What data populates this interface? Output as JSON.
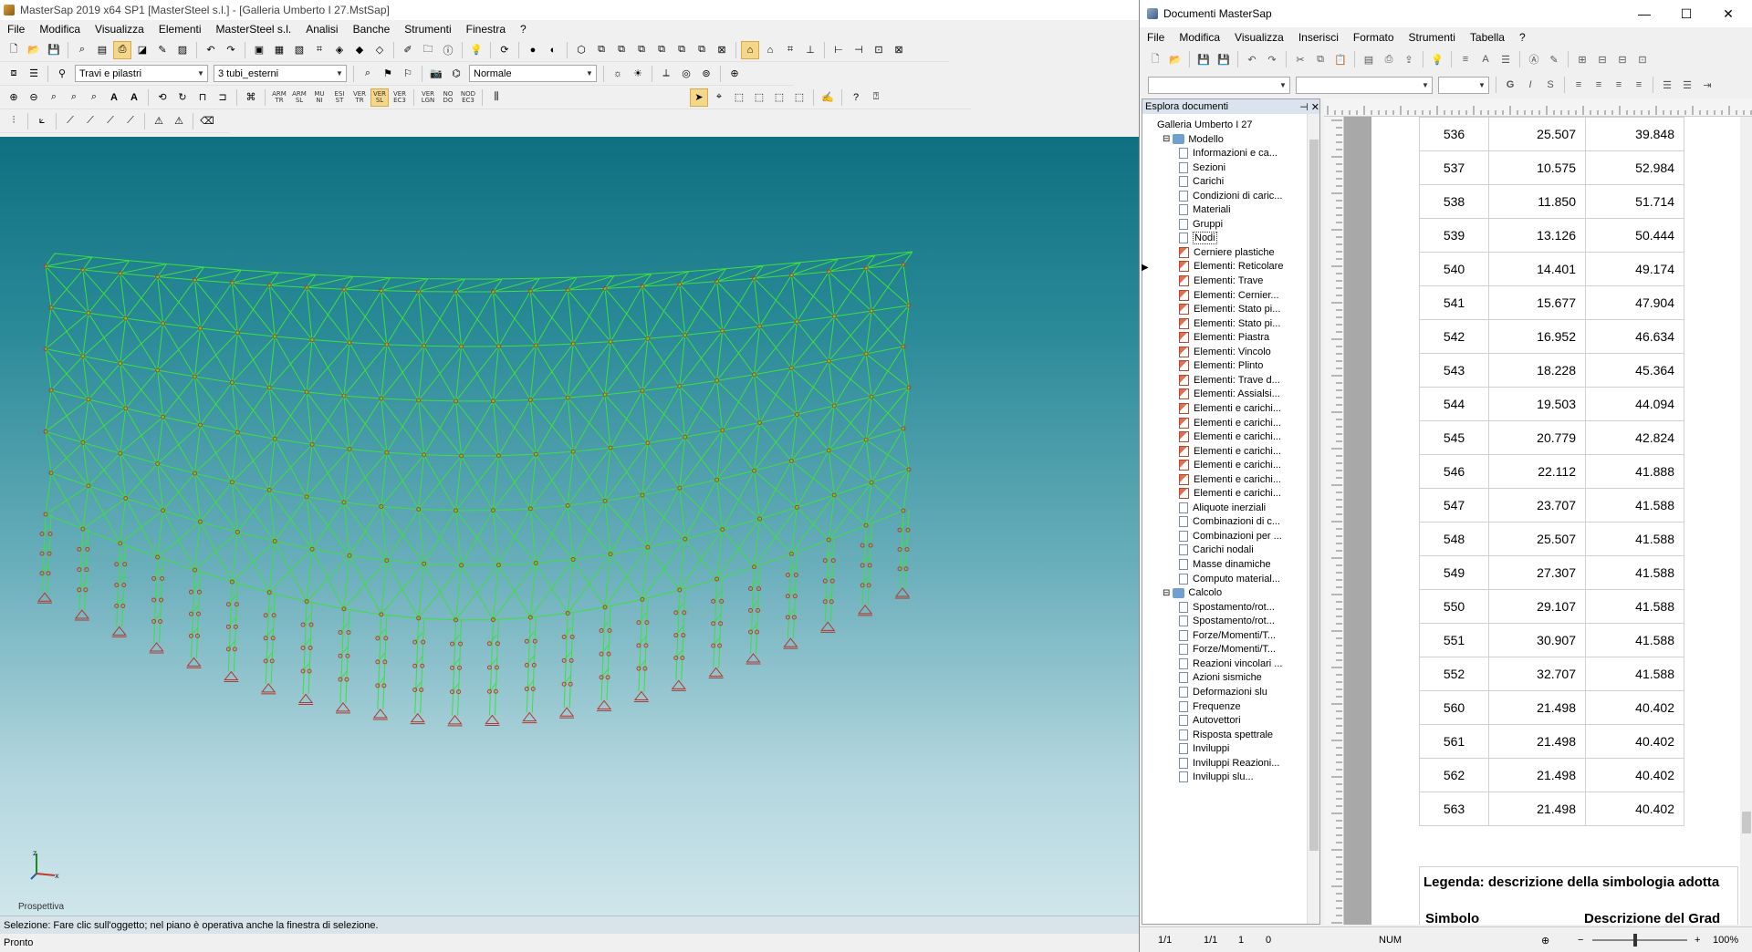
{
  "main": {
    "title": "MasterSap 2019 x64 SP1 [MasterSteel s.l.] - [Galleria Umberto I 27.MstSap]",
    "menu": [
      "File",
      "Modifica",
      "Visualizza",
      "Elementi",
      "MasterSteel s.l.",
      "Analisi",
      "Banche",
      "Strumenti",
      "Finestra",
      "?"
    ],
    "combo_element_type": "Travi e pilastri",
    "combo_group": "3 tubi_esterni",
    "combo_view_mode": "Normale",
    "toolbar3_labels": [
      "ARM TR",
      "ARM SL",
      "MU NI",
      "ESI ST",
      "VER TR",
      "VER SL",
      "VER EC3",
      "VER LGN",
      "NO DO",
      "NOD EC3"
    ],
    "view_label": "Prospettiva",
    "status_hint": "Selezione: Fare clic sull'oggetto; nel piano è operativa anche la finestra di selezione.",
    "status_ready": "Pronto",
    "colors": {
      "frame": "#3de03d",
      "node": "#c0392b",
      "support": "#b03a2e"
    }
  },
  "doc": {
    "title": "Documenti MasterSap",
    "menu": [
      "File",
      "Modifica",
      "Visualizza",
      "Inserisci",
      "Formato",
      "Strumenti",
      "Tabella",
      "?"
    ],
    "explorer_title": "Esplora documenti",
    "tree_root": "Galleria Umberto I 27",
    "tree": [
      {
        "label": "Modello",
        "type": "folder",
        "level": 1
      },
      {
        "label": "Informazioni e ca...",
        "type": "doc",
        "level": 2
      },
      {
        "label": "Sezioni",
        "type": "doc",
        "level": 2
      },
      {
        "label": "Carichi",
        "type": "doc",
        "level": 2
      },
      {
        "label": "Condizioni di caric...",
        "type": "doc",
        "level": 2
      },
      {
        "label": "Materiali",
        "type": "doc",
        "level": 2
      },
      {
        "label": "Gruppi",
        "type": "doc",
        "level": 2
      },
      {
        "label": "Nodi",
        "type": "doc",
        "level": 2,
        "selected": true
      },
      {
        "label": "Cerniere plastiche",
        "type": "red",
        "level": 2
      },
      {
        "label": "Elementi: Reticolare",
        "type": "red",
        "level": 2
      },
      {
        "label": "Elementi: Trave",
        "type": "red",
        "level": 2
      },
      {
        "label": "Elementi: Cernier...",
        "type": "red",
        "level": 2
      },
      {
        "label": "Elementi: Stato pi...",
        "type": "red",
        "level": 2
      },
      {
        "label": "Elementi: Stato pi...",
        "type": "red",
        "level": 2
      },
      {
        "label": "Elementi: Piastra",
        "type": "red",
        "level": 2
      },
      {
        "label": "Elementi: Vincolo",
        "type": "red",
        "level": 2
      },
      {
        "label": "Elementi: Plinto",
        "type": "red",
        "level": 2
      },
      {
        "label": "Elementi: Trave d...",
        "type": "red",
        "level": 2
      },
      {
        "label": "Elementi: Assialsi...",
        "type": "red",
        "level": 2
      },
      {
        "label": "Elementi e carichi...",
        "type": "red",
        "level": 2
      },
      {
        "label": "Elementi e carichi...",
        "type": "red",
        "level": 2
      },
      {
        "label": "Elementi e carichi...",
        "type": "red",
        "level": 2
      },
      {
        "label": "Elementi e carichi...",
        "type": "red",
        "level": 2
      },
      {
        "label": "Elementi e carichi...",
        "type": "red",
        "level": 2
      },
      {
        "label": "Elementi e carichi...",
        "type": "red",
        "level": 2
      },
      {
        "label": "Elementi e carichi...",
        "type": "red",
        "level": 2
      },
      {
        "label": "Aliquote inerziali",
        "type": "doc",
        "level": 2
      },
      {
        "label": "Combinazioni di c...",
        "type": "doc",
        "level": 2
      },
      {
        "label": "Combinazioni per ...",
        "type": "doc",
        "level": 2
      },
      {
        "label": "Carichi nodali",
        "type": "doc",
        "level": 2
      },
      {
        "label": "Masse dinamiche",
        "type": "doc",
        "level": 2
      },
      {
        "label": "Computo material...",
        "type": "doc",
        "level": 2
      },
      {
        "label": "Calcolo",
        "type": "folder",
        "level": 1
      },
      {
        "label": "Spostamento/rot...",
        "type": "doc",
        "level": 2
      },
      {
        "label": "Spostamento/rot...",
        "type": "doc",
        "level": 2
      },
      {
        "label": "Forze/Momenti/T...",
        "type": "doc",
        "level": 2
      },
      {
        "label": "Forze/Momenti/T...",
        "type": "doc",
        "level": 2
      },
      {
        "label": "Reazioni vincolari ...",
        "type": "doc",
        "level": 2
      },
      {
        "label": "Azioni sismiche",
        "type": "doc",
        "level": 2
      },
      {
        "label": "Deformazioni slu",
        "type": "doc",
        "level": 2
      },
      {
        "label": "Frequenze",
        "type": "doc",
        "level": 2
      },
      {
        "label": "Autovettori",
        "type": "doc",
        "level": 2
      },
      {
        "label": "Risposta spettrale",
        "type": "doc",
        "level": 2
      },
      {
        "label": "Inviluppi",
        "type": "doc",
        "level": 2
      },
      {
        "label": "Inviluppi Reazioni...",
        "type": "doc",
        "level": 2
      },
      {
        "label": "Inviluppi slu...",
        "type": "doc",
        "level": 2
      }
    ],
    "nodes_table": [
      [
        "536",
        "25.507",
        "39.848"
      ],
      [
        "537",
        "10.575",
        "52.984"
      ],
      [
        "538",
        "11.850",
        "51.714"
      ],
      [
        "539",
        "13.126",
        "50.444"
      ],
      [
        "540",
        "14.401",
        "49.174"
      ],
      [
        "541",
        "15.677",
        "47.904"
      ],
      [
        "542",
        "16.952",
        "46.634"
      ],
      [
        "543",
        "18.228",
        "45.364"
      ],
      [
        "544",
        "19.503",
        "44.094"
      ],
      [
        "545",
        "20.779",
        "42.824"
      ],
      [
        "546",
        "22.112",
        "41.888"
      ],
      [
        "547",
        "23.707",
        "41.588"
      ],
      [
        "548",
        "25.507",
        "41.588"
      ],
      [
        "549",
        "27.307",
        "41.588"
      ],
      [
        "550",
        "29.107",
        "41.588"
      ],
      [
        "551",
        "30.907",
        "41.588"
      ],
      [
        "552",
        "32.707",
        "41.588"
      ],
      [
        "560",
        "21.498",
        "40.402"
      ],
      [
        "561",
        "21.498",
        "40.402"
      ],
      [
        "562",
        "21.498",
        "40.402"
      ],
      [
        "563",
        "21.498",
        "40.402"
      ]
    ],
    "legend_title": "Legenda: descrizione della simbologia adotta",
    "legend_col1": "Simbolo",
    "legend_col2": "Descrizione del Grad",
    "status": {
      "page1": "1/1",
      "page2": "1/1",
      "line": "1",
      "col": "0",
      "num": "NUM",
      "zoom": "100%"
    }
  }
}
